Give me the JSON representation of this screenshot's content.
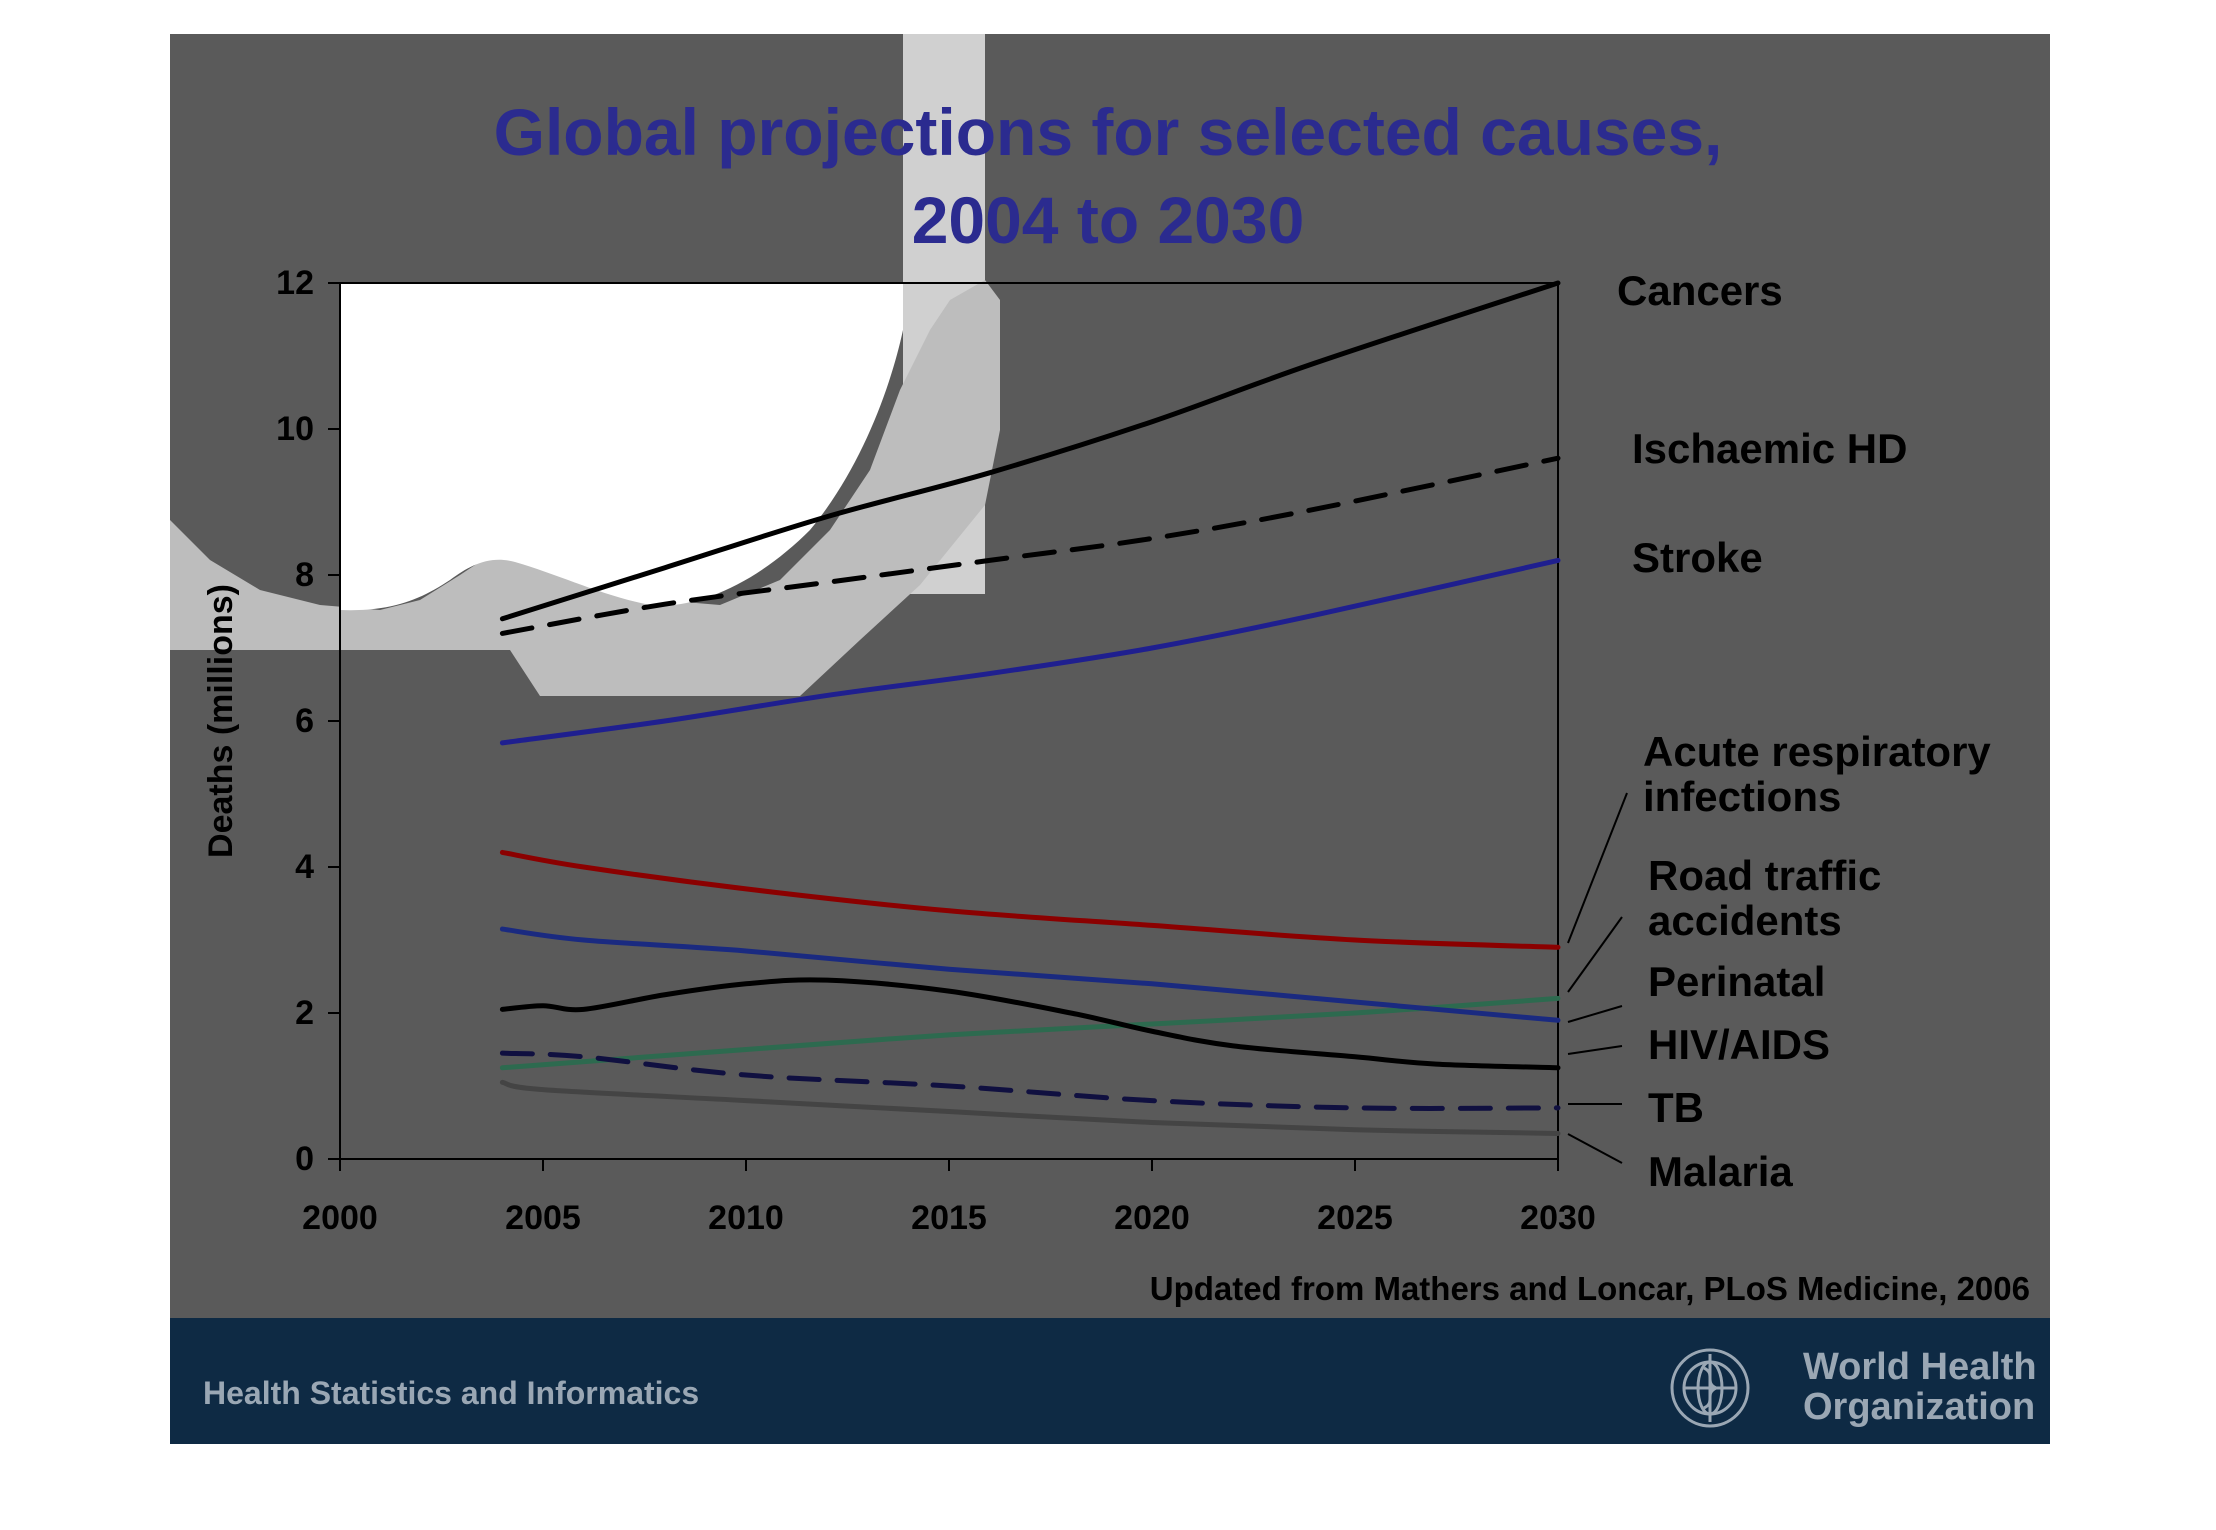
{
  "slide": {
    "colors": {
      "slide_background": "#5a5a5a",
      "footer_band": "#0e2a44",
      "title": "#2b2b8f",
      "footer_text": "#9aa7b4"
    },
    "footer": {
      "left_text": "Health Statistics and Informatics",
      "org_line1": "World Health",
      "org_line2": "Organization",
      "logo_icon": "who-emblem-icon"
    }
  },
  "chart_data": {
    "type": "line",
    "title": "Global projections for selected causes,",
    "title_line2": "2004 to 2030",
    "ylabel": "Deaths (millions)",
    "xlabel": "",
    "xlim": [
      2000,
      2030
    ],
    "ylim": [
      0,
      12
    ],
    "x_ticks": [
      2000,
      2005,
      2010,
      2015,
      2020,
      2025,
      2030
    ],
    "y_ticks": [
      0,
      2,
      4,
      6,
      8,
      10,
      12
    ],
    "x_tick_labels": [
      "2000",
      "2005",
      "2010",
      "2015",
      "2020",
      "2025",
      "2030"
    ],
    "y_tick_labels": [
      "0",
      "2",
      "4",
      "6",
      "8",
      "10",
      "12"
    ],
    "grid": false,
    "legend": "direct labels on right",
    "source_note": "Updated from Mathers and Loncar, PLoS Medicine, 2006",
    "series": [
      {
        "name": "Cancers",
        "label_lines": [
          "Cancers"
        ],
        "color": "#000000",
        "dash": false,
        "x": [
          2004,
          2008,
          2012,
          2016,
          2020,
          2024,
          2030
        ],
        "y": [
          7.4,
          8.1,
          8.8,
          9.4,
          10.1,
          10.9,
          12.0
        ]
      },
      {
        "name": "Ischaemic HD",
        "label_lines": [
          "Ischaemic HD"
        ],
        "color": "#000000",
        "dash": true,
        "x": [
          2004,
          2008,
          2012,
          2016,
          2020,
          2024,
          2030
        ],
        "y": [
          7.2,
          7.6,
          7.9,
          8.2,
          8.5,
          8.9,
          9.6
        ]
      },
      {
        "name": "Stroke",
        "label_lines": [
          "Stroke"
        ],
        "color": "#1f1f8f",
        "dash": false,
        "x": [
          2004,
          2008,
          2012,
          2016,
          2020,
          2024,
          2030
        ],
        "y": [
          5.7,
          6.0,
          6.35,
          6.65,
          7.0,
          7.45,
          8.2
        ]
      },
      {
        "name": "Acute respiratory infections",
        "label_lines": [
          "Acute respiratory",
          "infections"
        ],
        "color": "#8b0000",
        "dash": false,
        "x": [
          2004,
          2006,
          2010,
          2015,
          2020,
          2025,
          2030
        ],
        "y": [
          4.2,
          4.0,
          3.7,
          3.4,
          3.2,
          3.0,
          2.9
        ]
      },
      {
        "name": "Road traffic accidents",
        "label_lines": [
          "Road traffic",
          "accidents"
        ],
        "color": "#2d6a4f",
        "dash": false,
        "x": [
          2004,
          2010,
          2015,
          2020,
          2025,
          2030
        ],
        "y": [
          1.25,
          1.5,
          1.7,
          1.85,
          2.0,
          2.2
        ]
      },
      {
        "name": "Perinatal",
        "label_lines": [
          "Perinatal"
        ],
        "color": "#1a2a80",
        "dash": false,
        "x": [
          2004,
          2006,
          2010,
          2015,
          2020,
          2025,
          2030
        ],
        "y": [
          3.15,
          3.0,
          2.85,
          2.6,
          2.4,
          2.15,
          1.9
        ]
      },
      {
        "name": "HIV/AIDS",
        "label_lines": [
          "HIV/AIDS"
        ],
        "color": "#000000",
        "dash": false,
        "x": [
          2004,
          2005,
          2006,
          2008,
          2010,
          2012,
          2015,
          2018,
          2020,
          2022,
          2025,
          2027,
          2030
        ],
        "y": [
          2.05,
          2.1,
          2.05,
          2.25,
          2.4,
          2.45,
          2.3,
          2.0,
          1.75,
          1.55,
          1.4,
          1.3,
          1.25
        ]
      },
      {
        "name": "TB",
        "label_lines": [
          "TB"
        ],
        "color": "#101040",
        "dash": true,
        "x": [
          2004,
          2006,
          2010,
          2015,
          2020,
          2025,
          2030
        ],
        "y": [
          1.45,
          1.4,
          1.15,
          1.0,
          0.8,
          0.7,
          0.7
        ]
      },
      {
        "name": "Malaria",
        "label_lines": [
          "Malaria"
        ],
        "color": "#444444",
        "dash": false,
        "x": [
          2004,
          2005,
          2010,
          2015,
          2020,
          2025,
          2030
        ],
        "y": [
          1.05,
          0.95,
          0.8,
          0.65,
          0.5,
          0.4,
          0.35
        ]
      }
    ]
  }
}
